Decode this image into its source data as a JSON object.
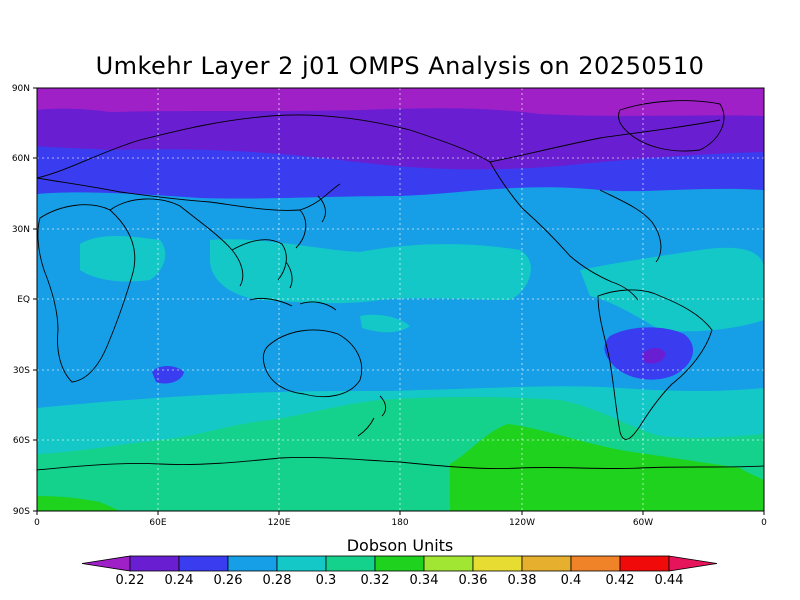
{
  "title": "Umkehr Layer 2 j01 OMPS Analysis on 20250510",
  "lat_ticks": [
    "90N",
    "60N",
    "30N",
    "EQ",
    "30S",
    "60S",
    "90S"
  ],
  "lon_ticks": [
    "0",
    "60E",
    "120E",
    "180",
    "120W",
    "60W",
    "0"
  ],
  "colorbar": {
    "title": "Dobson Units",
    "levels": [
      "0.22",
      "0.24",
      "0.26",
      "0.28",
      "0.3",
      "0.32",
      "0.34",
      "0.36",
      "0.38",
      "0.4",
      "0.42",
      "0.44"
    ],
    "colors": [
      "#a020c8",
      "#6a1ed2",
      "#3a3cf0",
      "#169fe6",
      "#14c8c8",
      "#14d28c",
      "#1ed21e",
      "#a0e632",
      "#e6dc32",
      "#e6af2d",
      "#f08228",
      "#f00a0a",
      "#e6145a"
    ]
  },
  "field_bands": [
    {
      "name": "0.22-0.24",
      "color": "#a020c8"
    },
    {
      "name": "0.24-0.26",
      "color": "#6a1ed2"
    },
    {
      "name": "0.26-0.28",
      "color": "#3a3cf0"
    },
    {
      "name": "0.28-0.30",
      "color": "#169fe6"
    },
    {
      "name": "0.30-0.32",
      "color": "#14c8c8"
    },
    {
      "name": "0.32-0.34",
      "color": "#14d28c"
    },
    {
      "name": "0.34-0.36",
      "color": "#1ed21e"
    }
  ]
}
